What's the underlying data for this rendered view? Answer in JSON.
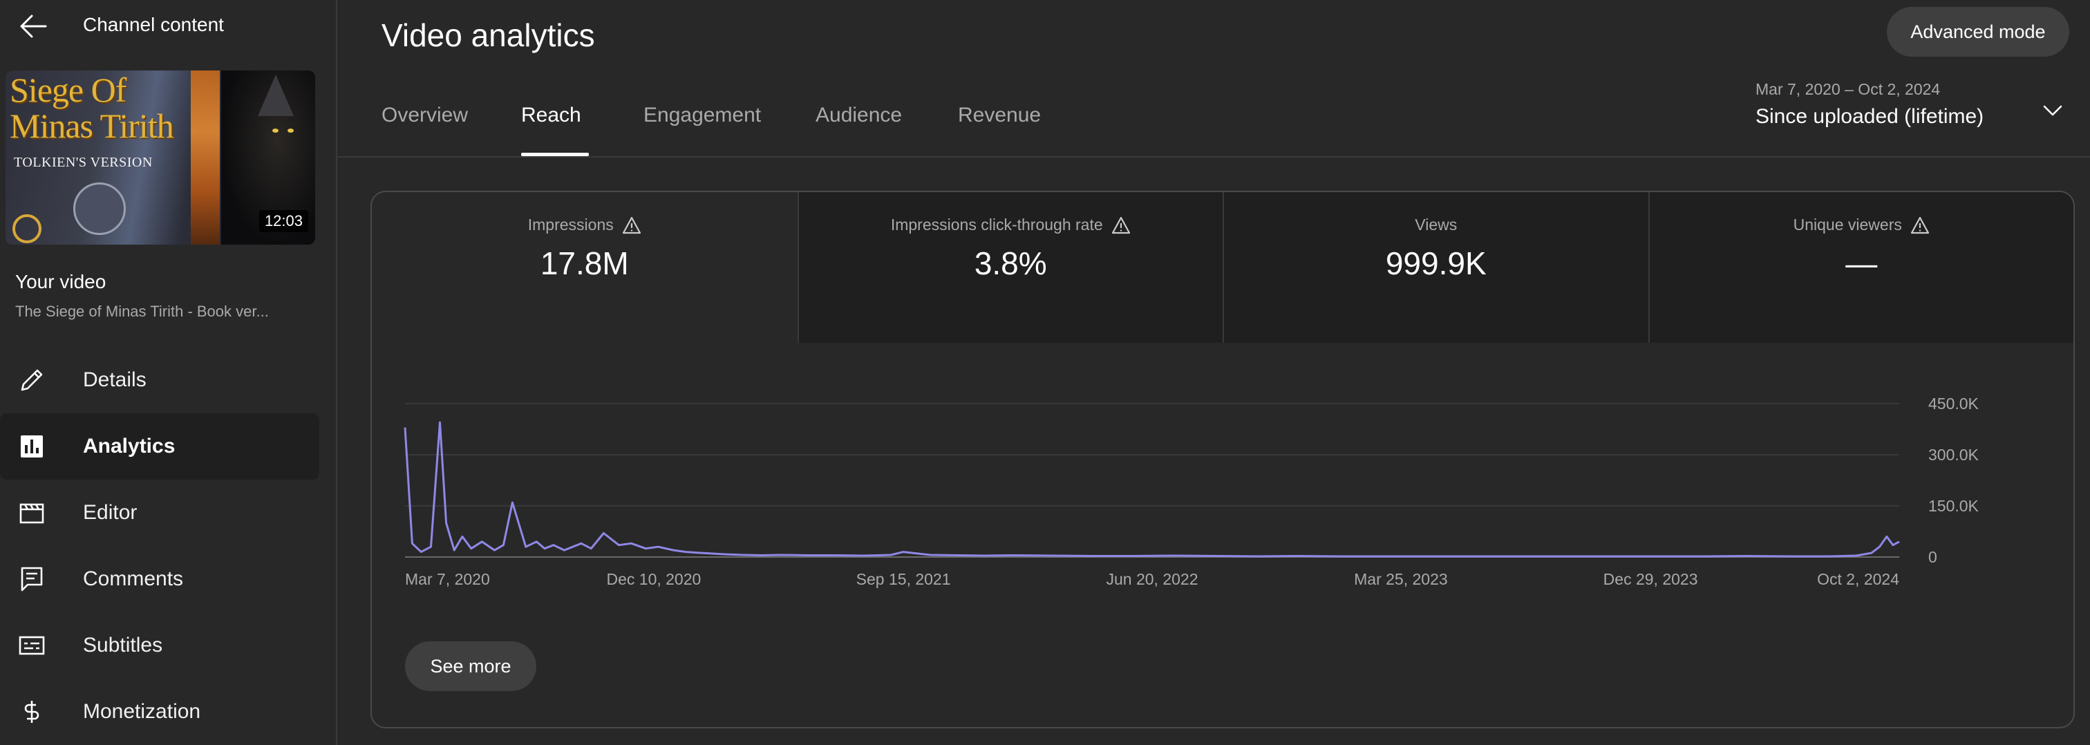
{
  "sidebar": {
    "header_title": "Channel content",
    "thumbnail": {
      "title_line1": "Siege Of",
      "title_line2": "Minas Tirith",
      "subtitle": "TOLKIEN'S VERSION",
      "duration": "12:03"
    },
    "your_video_label": "Your video",
    "video_title": "The Siege of Minas Tirith - Book ver...",
    "items": [
      {
        "label": "Details",
        "icon": "pencil-icon"
      },
      {
        "label": "Analytics",
        "icon": "analytics-icon",
        "active": true
      },
      {
        "label": "Editor",
        "icon": "clapperboard-icon"
      },
      {
        "label": "Comments",
        "icon": "comment-icon"
      },
      {
        "label": "Subtitles",
        "icon": "subtitles-icon"
      },
      {
        "label": "Monetization",
        "icon": "dollar-icon"
      }
    ]
  },
  "header": {
    "title": "Video analytics",
    "advanced_mode_label": "Advanced mode"
  },
  "tabs": [
    {
      "label": "Overview"
    },
    {
      "label": "Reach",
      "active": true
    },
    {
      "label": "Engagement"
    },
    {
      "label": "Audience"
    },
    {
      "label": "Revenue"
    }
  ],
  "date_picker": {
    "range": "Mar 7, 2020 – Oct 2, 2024",
    "label": "Since uploaded (lifetime)"
  },
  "metrics": [
    {
      "label": "Impressions",
      "value": "17.8M",
      "warning": true
    },
    {
      "label": "Impressions click-through rate",
      "value": "3.8%",
      "warning": true
    },
    {
      "label": "Views",
      "value": "999.9K",
      "warning": false
    },
    {
      "label": "Unique viewers",
      "value": "—",
      "warning": true
    }
  ],
  "see_more_label": "See more",
  "colors": {
    "background": "#282828",
    "series_line": "#8f88e6",
    "grid": "#3e3e3e",
    "muted_text": "#aaaaaa"
  },
  "chart_data": {
    "type": "line",
    "series": [
      {
        "x": [
          "2020-03-07",
          "2020-03-15",
          "2020-03-25",
          "2020-04-05",
          "2020-04-15",
          "2020-04-22",
          "2020-05-01",
          "2020-05-10",
          "2020-05-20",
          "2020-06-01",
          "2020-06-15",
          "2020-06-25",
          "2020-07-05",
          "2020-07-20",
          "2020-08-01",
          "2020-08-10",
          "2020-08-20",
          "2020-09-01",
          "2020-09-20",
          "2020-10-01",
          "2020-10-15",
          "2020-11-01",
          "2020-11-15",
          "2020-12-01",
          "2020-12-15",
          "2021-01-01",
          "2021-01-15",
          "2021-02-01",
          "2021-02-15",
          "2021-03-01",
          "2021-03-20",
          "2021-04-10",
          "2021-05-01",
          "2021-06-01",
          "2021-07-01",
          "2021-08-01",
          "2021-09-01",
          "2021-09-15",
          "2021-10-15",
          "2021-11-15",
          "2021-12-15",
          "2022-01-15",
          "2022-03-01",
          "2022-04-15",
          "2022-06-01",
          "2022-07-15",
          "2022-09-01",
          "2022-10-15",
          "2022-12-01",
          "2023-01-15",
          "2023-03-01",
          "2023-04-15",
          "2023-06-01",
          "2023-07-15",
          "2023-09-01",
          "2023-10-15",
          "2023-12-01",
          "2024-01-15",
          "2024-03-01",
          "2024-04-15",
          "2024-06-01",
          "2024-07-15",
          "2024-08-15",
          "2024-09-01",
          "2024-09-10",
          "2024-09-18",
          "2024-09-25",
          "2024-10-02"
        ],
        "values": [
          380000,
          40000,
          15000,
          30000,
          395000,
          100000,
          20000,
          60000,
          25000,
          45000,
          20000,
          35000,
          160000,
          30000,
          45000,
          25000,
          35000,
          20000,
          40000,
          25000,
          70000,
          35000,
          40000,
          25000,
          30000,
          20000,
          15000,
          12000,
          10000,
          8000,
          6000,
          5000,
          6000,
          5000,
          5000,
          4000,
          6000,
          15000,
          6000,
          5000,
          4000,
          5000,
          4000,
          3000,
          3000,
          4000,
          3000,
          2000,
          3000,
          2000,
          2000,
          2000,
          2000,
          2000,
          2000,
          2000,
          2000,
          2000,
          2000,
          3000,
          2000,
          2000,
          4000,
          12000,
          30000,
          60000,
          35000,
          45000
        ]
      }
    ],
    "x_tick_labels": [
      "Mar 7, 2020",
      "Dec 10, 2020",
      "Sep 15, 2021",
      "Jun 20, 2022",
      "Mar 25, 2023",
      "Dec 29, 2023",
      "Oct 2, 2024"
    ],
    "x_tick_dates": [
      "2020-03-07",
      "2020-12-10",
      "2021-09-15",
      "2022-06-20",
      "2023-03-25",
      "2023-12-29",
      "2024-10-02"
    ],
    "y_tick_labels": [
      "0",
      "150.0K",
      "300.0K",
      "450.0K"
    ],
    "y_tick_values": [
      0,
      150000,
      300000,
      450000
    ],
    "xlim": [
      "2020-03-07",
      "2024-10-02"
    ],
    "ylim": [
      0,
      450000
    ],
    "grid": true
  }
}
